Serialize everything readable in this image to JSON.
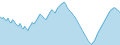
{
  "chart_data": {
    "type": "line",
    "values": [
      55,
      52,
      54,
      50,
      48,
      53,
      46,
      44,
      50,
      47,
      42,
      40,
      38,
      43,
      36,
      33,
      38,
      34,
      30,
      36,
      40,
      45,
      42,
      46,
      50,
      55,
      60,
      58,
      55,
      52,
      50,
      55,
      60,
      65,
      68,
      65,
      62,
      68,
      72,
      75,
      78,
      80,
      82,
      78,
      72,
      68,
      65,
      62,
      58,
      55,
      50,
      45,
      40,
      35,
      30,
      25,
      20,
      15,
      10,
      8,
      5,
      8,
      12,
      18,
      25,
      30,
      35,
      40,
      45,
      50,
      55,
      60,
      65,
      68,
      70,
      72,
      70,
      68,
      65,
      62
    ],
    "color": "#5bafd6",
    "ylim": [
      3,
      85
    ],
    "grid": false,
    "tick_labels": false
  }
}
